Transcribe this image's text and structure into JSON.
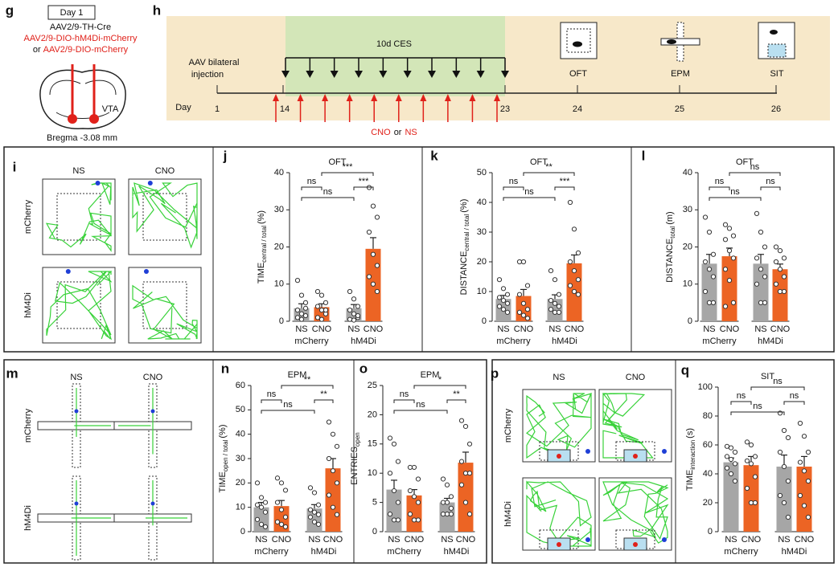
{
  "g": {
    "letter": "g",
    "day": "Day 1",
    "virus1": "AAV2/9-TH-Cre",
    "virus2": "AAV2/9-DIO-hM4Di-mCherry",
    "or": "or",
    "virus3": "AAV2/9-DIO-mCherry",
    "region": "VTA",
    "bregma": "Bregma -3.08 mm"
  },
  "h": {
    "letter": "h",
    "ces": "10d CES",
    "injection": [
      "AAV bilateral",
      "injection"
    ],
    "day_label": "Day",
    "days": [
      1,
      14,
      23,
      24,
      25,
      26
    ],
    "treatment": {
      "cno": "CNO",
      "or": "or",
      "ns": "NS"
    },
    "tests": [
      "OFT",
      "EPM",
      "SIT"
    ]
  },
  "i": {
    "letter": "i",
    "columns": [
      "NS",
      "CNO"
    ],
    "rows": [
      "mCherry",
      "hM4Di"
    ]
  },
  "m": {
    "letter": "m",
    "columns": [
      "NS",
      "CNO"
    ],
    "rows": [
      "mCherry",
      "hM4Di"
    ]
  },
  "p": {
    "letter": "p",
    "columns": [
      "NS",
      "CNO"
    ],
    "rows": [
      "mCherry",
      "hM4Di"
    ]
  },
  "chart_data": [
    {
      "type": "bar",
      "panel": "j",
      "title": "OFT",
      "ylabel": {
        "main": "TIME",
        "sub": "central / total",
        "unit": "(%)"
      },
      "groups": [
        "mCherry",
        "hM4Di"
      ],
      "ylim": [
        0,
        40
      ],
      "yticks": [
        0,
        10,
        20,
        30,
        40
      ],
      "annotations": [
        "ns",
        "***",
        "ns",
        "***"
      ],
      "series": [
        {
          "name": "NS",
          "color": "#a6a6a6",
          "values": [
            3.5,
            3.5
          ],
          "errors": [
            1.2,
            1.0
          ],
          "points": [
            [
              11,
              7,
              5,
              3,
              2,
              1.5,
              1,
              0.5,
              3.5
            ],
            [
              8,
              6,
              4,
              3,
              2,
              1,
              0.5,
              0.3,
              1.5
            ]
          ]
        },
        {
          "name": "CNO",
          "color": "#ec6424",
          "values": [
            3.8,
            19.5
          ],
          "errors": [
            0.9,
            3.0
          ],
          "points": [
            [
              8,
              7,
              5,
              4,
              3,
              2,
              1,
              0.5,
              3
            ],
            [
              36,
              31,
              28,
              24,
              18,
              15,
              12,
              10,
              8
            ]
          ]
        }
      ]
    },
    {
      "type": "bar",
      "panel": "k",
      "title": "OFT",
      "ylabel": {
        "main": "DISTANCE",
        "sub": "central / total",
        "unit": "(%)"
      },
      "groups": [
        "mCherry",
        "hM4Di"
      ],
      "ylim": [
        0,
        50
      ],
      "yticks": [
        0,
        10,
        20,
        30,
        40,
        50
      ],
      "annotations": [
        "ns",
        "***",
        "ns",
        "**"
      ],
      "series": [
        {
          "name": "NS",
          "color": "#a6a6a6",
          "values": [
            7.5,
            7.5
          ],
          "errors": [
            1.2,
            1.4
          ],
          "points": [
            [
              14,
              11,
              9,
              8,
              7,
              6,
              5,
              4,
              3
            ],
            [
              17,
              14,
              9,
              7,
              6,
              5,
              4,
              3,
              3
            ]
          ]
        },
        {
          "name": "CNO",
          "color": "#ec6424",
          "values": [
            8.5,
            19.5
          ],
          "errors": [
            2.2,
            2.8
          ],
          "points": [
            [
              20,
              20,
              12,
              9,
              6,
              4,
              3,
              2,
              1
            ],
            [
              40,
              31,
              23,
              20,
              17,
              14,
              12,
              10,
              9
            ]
          ]
        }
      ]
    },
    {
      "type": "bar",
      "panel": "l",
      "title": "OFT",
      "ylabel": {
        "main": "DISTANCE",
        "sub": "total",
        "unit": "(m)"
      },
      "groups": [
        "mCherry",
        "hM4Di"
      ],
      "ylim": [
        0,
        40
      ],
      "yticks": [
        0,
        10,
        20,
        30,
        40
      ],
      "annotations": [
        "ns",
        "ns",
        "ns",
        "ns"
      ],
      "series": [
        {
          "name": "NS",
          "color": "#a6a6a6",
          "values": [
            15.5,
            15.5
          ],
          "errors": [
            2.5,
            2.5
          ],
          "points": [
            [
              28,
              24,
              18,
              16,
              14,
              12,
              8,
              5,
              5
            ],
            [
              29,
              24,
              20,
              17,
              14,
              12,
              10,
              5,
              5
            ]
          ]
        },
        {
          "name": "CNO",
          "color": "#ec6424",
          "values": [
            17.5,
            14
          ],
          "errors": [
            2.2,
            1.4
          ],
          "points": [
            [
              26,
              25,
              23,
              22,
              19,
              17,
              14,
              11,
              5,
              4
            ],
            [
              20,
              19,
              17,
              16,
              14,
              12,
              10,
              8,
              8
            ]
          ]
        }
      ]
    },
    {
      "type": "bar",
      "panel": "n",
      "title": "EPM",
      "ylabel": {
        "main": "TIME",
        "sub": "open / total",
        "unit": "(%)"
      },
      "groups": [
        "mCherry",
        "hM4Di"
      ],
      "ylim": [
        0,
        60
      ],
      "yticks": [
        0,
        10,
        20,
        30,
        40,
        50,
        60
      ],
      "annotations": [
        "ns",
        "**",
        "ns",
        "**"
      ],
      "series": [
        {
          "name": "NS",
          "color": "#a6a6a6",
          "values": [
            10,
            9.5
          ],
          "errors": [
            2,
            1.6
          ],
          "points": [
            [
              20,
              14,
              12,
              11,
              10,
              8,
              5,
              3,
              2
            ],
            [
              18,
              16,
              11,
              9,
              8,
              7,
              6,
              4,
              3
            ]
          ]
        },
        {
          "name": "CNO",
          "color": "#ec6424",
          "values": [
            10.5,
            26
          ],
          "errors": [
            2.3,
            4
          ],
          "points": [
            [
              22,
              20,
              17,
              12,
              9,
              6,
              4,
              3,
              2
            ],
            [
              45,
              40,
              35,
              30,
              25,
              20,
              15,
              10,
              7
            ]
          ]
        }
      ]
    },
    {
      "type": "bar",
      "panel": "o",
      "title": "EPM",
      "ylabel": {
        "main": "ENTRIES",
        "sub": "open",
        "unit": ""
      },
      "groups": [
        "mCherry",
        "hM4Di"
      ],
      "ylim": [
        0,
        25
      ],
      "yticks": [
        0,
        5,
        10,
        15,
        20,
        25
      ],
      "annotations": [
        "ns",
        "**",
        "ns",
        "*"
      ],
      "series": [
        {
          "name": "NS",
          "color": "#a6a6a6",
          "values": [
            7.2,
            5
          ],
          "errors": [
            1.6,
            0.7
          ],
          "points": [
            [
              16,
              15,
              12,
              10,
              7,
              5,
              3,
              2,
              2
            ],
            [
              9,
              8,
              6,
              5,
              5,
              4,
              3,
              3,
              3
            ]
          ]
        },
        {
          "name": "CNO",
          "color": "#ec6424",
          "values": [
            6.2,
            11.8
          ],
          "errors": [
            1,
            1.8
          ],
          "points": [
            [
              11,
              11,
              9,
              7,
              6,
              5,
              3,
              2,
              2
            ],
            [
              19,
              18,
              15,
              12,
              10,
              10,
              8,
              5,
              3
            ]
          ]
        }
      ]
    },
    {
      "type": "bar",
      "panel": "q",
      "title": "SIT",
      "ylabel": {
        "main": "TIME",
        "sub": "interaction",
        "unit": "(s)"
      },
      "groups": [
        "mCherry",
        "hM4Di"
      ],
      "ylim": [
        0,
        100
      ],
      "yticks": [
        0,
        20,
        40,
        60,
        80,
        100
      ],
      "annotations": [
        "ns",
        "ns",
        "ns",
        "ns"
      ],
      "series": [
        {
          "name": "NS",
          "color": "#a6a6a6",
          "values": [
            48,
            45
          ],
          "errors": [
            3,
            8
          ],
          "points": [
            [
              59,
              58,
              55,
              52,
              50,
              47,
              44,
              40,
              35
            ],
            [
              82,
              70,
              65,
              55,
              45,
              35,
              25,
              20,
              10
            ]
          ]
        },
        {
          "name": "CNO",
          "color": "#ec6424",
          "values": [
            46,
            45
          ],
          "errors": [
            6,
            7
          ],
          "points": [
            [
              62,
              60,
              52,
              49,
              47,
              38,
              30,
              20,
              20
            ],
            [
              75,
              66,
              55,
              48,
              42,
              35,
              25,
              18,
              10
            ]
          ]
        }
      ]
    }
  ]
}
